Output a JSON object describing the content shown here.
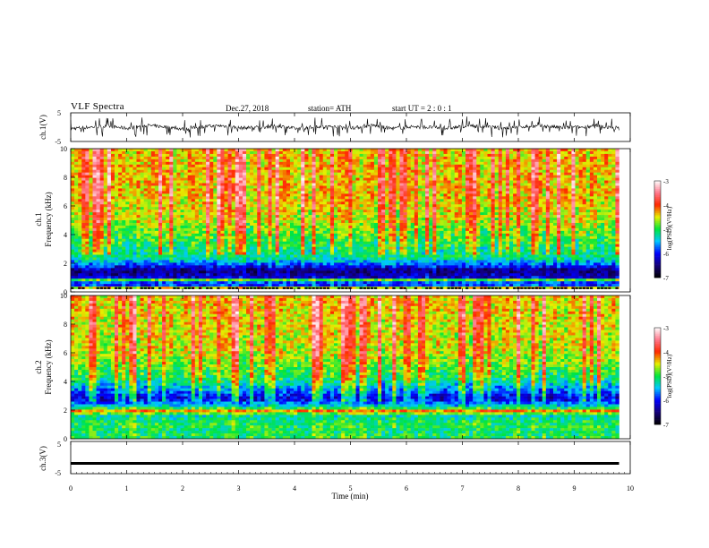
{
  "header": {
    "title": "VLF  Spectra",
    "date": "Dec.27, 2018",
    "station": "station= ATH",
    "start_ut": "start  UT  =    2  : 0   : 1"
  },
  "chart_data": [
    {
      "type": "line",
      "panel": "ch1-waveform",
      "ylabel": "ch.1(V)",
      "yticks": [
        "5",
        "-5"
      ],
      "ylim": [
        -5,
        5
      ],
      "xlim": [
        0,
        9.8
      ],
      "values": [
        -0.5,
        0.0,
        0.3,
        -0.4,
        0.6,
        0.1,
        -0.7,
        0.2,
        0.5,
        -0.3,
        0.0,
        0.4,
        -0.6,
        0.3,
        0.1,
        -0.2,
        0.6,
        -0.5,
        0.2,
        0.0,
        -0.4,
        0.5,
        0.1,
        -0.3,
        0.2,
        0.4,
        -0.2,
        0.0,
        0.3,
        -0.5
      ],
      "spike_amplitude": 3.5
    },
    {
      "type": "heatmap",
      "panel": "ch1-spectrogram",
      "ylabel": "Frequency  (kHz)",
      "channel_label": "ch.1",
      "ylim": [
        0,
        10
      ],
      "yticks": [
        "10",
        "8",
        "6",
        "4",
        "2",
        "0"
      ],
      "xlim": [
        0,
        9.8
      ],
      "colorbar": {
        "label": "log(PSD)(V²/Hz)",
        "ticks": [
          "-3",
          "-4",
          "-5",
          "-6",
          "-7"
        ],
        "range": [
          -7,
          -3
        ]
      },
      "profile": [
        {
          "f": 0.0,
          "v": -3.7
        },
        {
          "f": 0.3,
          "v": -4.6
        },
        {
          "f": 0.55,
          "v": -6.6
        },
        {
          "f": 0.8,
          "v": -4.6
        },
        {
          "f": 1.0,
          "v": -6.2
        },
        {
          "f": 1.5,
          "v": -6.5
        },
        {
          "f": 1.9,
          "v": -5.8
        },
        {
          "f": 2.4,
          "v": -5.2
        },
        {
          "f": 3.5,
          "v": -4.9
        },
        {
          "f": 5.0,
          "v": -4.5
        },
        {
          "f": 7.0,
          "v": -4.3
        },
        {
          "f": 10.0,
          "v": -4.3
        }
      ],
      "no_data_band": [
        0.0,
        0.2
      ]
    },
    {
      "type": "heatmap",
      "panel": "ch2-spectrogram",
      "ylabel": "Frequency  (kHz)",
      "channel_label": "ch.2",
      "ylim": [
        0,
        10
      ],
      "yticks": [
        "10",
        "8",
        "6",
        "4",
        "2",
        "0"
      ],
      "xlim": [
        0,
        9.8
      ],
      "colorbar": {
        "label": "log(PSD)(V²/Hz)",
        "ticks": [
          "-3",
          "-4",
          "-5",
          "-6",
          "-7"
        ],
        "range": [
          -7,
          -3
        ]
      },
      "profile": [
        {
          "f": 0.0,
          "v": -5.0
        },
        {
          "f": 0.5,
          "v": -5.1
        },
        {
          "f": 1.0,
          "v": -5.0
        },
        {
          "f": 1.6,
          "v": -5.3
        },
        {
          "f": 1.95,
          "v": -4.2
        },
        {
          "f": 2.2,
          "v": -5.3
        },
        {
          "f": 2.8,
          "v": -6.1
        },
        {
          "f": 3.4,
          "v": -5.6
        },
        {
          "f": 4.2,
          "v": -5.0
        },
        {
          "f": 6.0,
          "v": -4.5
        },
        {
          "f": 10.0,
          "v": -4.3
        }
      ]
    },
    {
      "type": "line",
      "panel": "ch3-waveform",
      "ylabel": "ch.3(V)",
      "yticks": [
        "5",
        "-5"
      ],
      "ylim": [
        -5,
        5
      ],
      "xlim": [
        0,
        9.8
      ],
      "values": [
        -1.8,
        -1.8
      ]
    }
  ],
  "x_axis": {
    "label": "Time  (min)",
    "ticks": [
      "0",
      "1",
      "2",
      "3",
      "4",
      "5",
      "6",
      "7",
      "8",
      "9",
      "10"
    ],
    "range": [
      0,
      10
    ]
  }
}
